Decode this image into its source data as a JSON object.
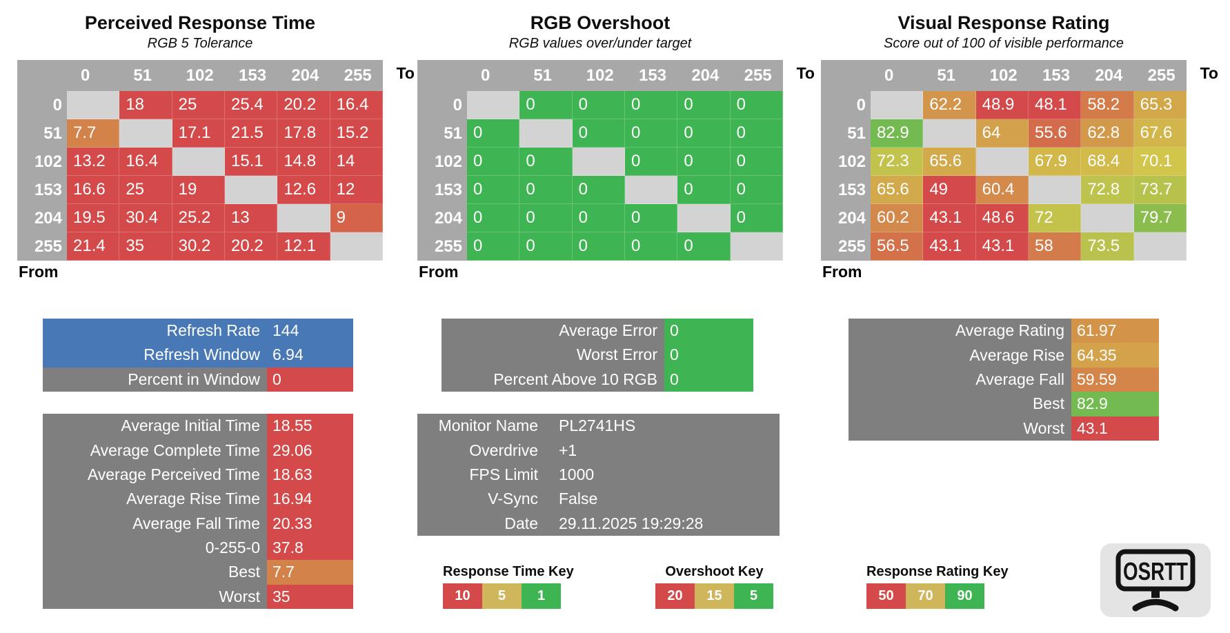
{
  "logo_text": "OSRTT",
  "colors": {
    "red": "#d44a4a",
    "green": "#3eb552",
    "yellow": "#d2c54b",
    "blue": "#4879b6",
    "gray": "#7f7f7f",
    "header_gray": "#a8a8a8",
    "diag_gray": "#d3d3d3",
    "key_yellow": "#cfb65a",
    "logo_bg": "#e4e4e4"
  },
  "scales": {
    "time": {
      "stops": [
        [
          1,
          "#3eb552"
        ],
        [
          5,
          "#d2c54b"
        ],
        [
          10,
          "#d44a4a"
        ]
      ]
    },
    "overshoot": {
      "stops": [
        [
          5,
          "#3eb552"
        ],
        [
          15,
          "#d2c54b"
        ],
        [
          20,
          "#d44a4a"
        ]
      ]
    },
    "rating": {
      "stops": [
        [
          50,
          "#d44a4a"
        ],
        [
          70,
          "#d2c54b"
        ],
        [
          90,
          "#3eb552"
        ]
      ]
    }
  },
  "heatmaps": [
    {
      "title": "Perceived Response Time",
      "subtitle": "RGB 5 Tolerance",
      "to_label": "To",
      "from_label": "From",
      "scale": "time",
      "columns": [
        "0",
        "51",
        "102",
        "153",
        "204",
        "255"
      ],
      "rows": [
        "0",
        "51",
        "102",
        "153",
        "204",
        "255"
      ],
      "cells": [
        [
          null,
          18,
          25,
          25.4,
          20.2,
          16.4
        ],
        [
          7.7,
          null,
          17.1,
          21.5,
          17.8,
          15.2
        ],
        [
          13.2,
          16.4,
          null,
          15.1,
          14.8,
          14
        ],
        [
          16.6,
          25,
          19,
          null,
          12.6,
          12
        ],
        [
          19.5,
          30.4,
          25.2,
          13,
          null,
          9
        ],
        [
          21.4,
          35,
          30.2,
          20.2,
          12.1,
          null
        ]
      ]
    },
    {
      "title": "RGB Overshoot",
      "subtitle": "RGB values over/under target",
      "to_label": "To",
      "from_label": "From",
      "scale": "overshoot",
      "columns": [
        "0",
        "51",
        "102",
        "153",
        "204",
        "255"
      ],
      "rows": [
        "0",
        "51",
        "102",
        "153",
        "204",
        "255"
      ],
      "cells": [
        [
          null,
          0,
          0,
          0,
          0,
          0
        ],
        [
          0,
          null,
          0,
          0,
          0,
          0
        ],
        [
          0,
          0,
          null,
          0,
          0,
          0
        ],
        [
          0,
          0,
          0,
          null,
          0,
          0
        ],
        [
          0,
          0,
          0,
          0,
          null,
          0
        ],
        [
          0,
          0,
          0,
          0,
          0,
          null
        ]
      ]
    },
    {
      "title": "Visual Response Rating",
      "subtitle": "Score out of 100 of visible performance",
      "to_label": "To",
      "from_label": "From",
      "scale": "rating",
      "columns": [
        "0",
        "51",
        "102",
        "153",
        "204",
        "255"
      ],
      "rows": [
        "0",
        "51",
        "102",
        "153",
        "204",
        "255"
      ],
      "cells": [
        [
          null,
          62.2,
          48.9,
          48.1,
          58.2,
          65.3
        ],
        [
          82.9,
          null,
          64,
          55.6,
          62.8,
          67.6
        ],
        [
          72.3,
          65.6,
          null,
          67.9,
          68.4,
          70.1
        ],
        [
          65.6,
          49,
          60.4,
          null,
          72.8,
          73.7
        ],
        [
          60.2,
          43.1,
          48.6,
          72,
          null,
          79.7
        ],
        [
          56.5,
          43.1,
          43.1,
          58,
          73.5,
          null
        ]
      ]
    }
  ],
  "summary_blocks": [
    {
      "id": "refresh",
      "rows": [
        {
          "label": "Refresh Rate",
          "value": "144",
          "label_bg": "blue",
          "value_bg": "blue"
        },
        {
          "label": "Refresh Window",
          "value": "6.94",
          "label_bg": "blue",
          "value_bg": "blue"
        },
        {
          "label": "Percent in Window",
          "value": "0",
          "label_bg": "gray",
          "value_bg": "red"
        }
      ]
    },
    {
      "id": "times",
      "rows": [
        {
          "label": "Average Initial Time",
          "value": "18.55",
          "label_bg": "gray",
          "value_bg": "red"
        },
        {
          "label": "Average Complete Time",
          "value": "29.06",
          "label_bg": "gray",
          "value_bg": "red"
        },
        {
          "label": "Average Perceived Time",
          "value": "18.63",
          "label_bg": "gray",
          "value_bg": "red"
        },
        {
          "label": "Average Rise Time",
          "value": "16.94",
          "label_bg": "gray",
          "value_bg": "red"
        },
        {
          "label": "Average Fall Time",
          "value": "20.33",
          "label_bg": "gray",
          "value_bg": "red"
        },
        {
          "label": "0-255-0",
          "value": "37.8",
          "label_bg": "gray",
          "value_bg": "red"
        },
        {
          "label": "Best",
          "value": "7.7",
          "label_bg": "gray",
          "value_bg": "#d38349"
        },
        {
          "label": "Worst",
          "value": "35",
          "label_bg": "gray",
          "value_bg": "red"
        }
      ]
    },
    {
      "id": "error",
      "rows": [
        {
          "label": "Average Error",
          "value": "0",
          "label_bg": "gray",
          "value_bg": "green"
        },
        {
          "label": "Worst Error",
          "value": "0",
          "label_bg": "gray",
          "value_bg": "green"
        },
        {
          "label": "Percent Above 10 RGB",
          "value": "0",
          "label_bg": "gray",
          "value_bg": "green"
        }
      ]
    },
    {
      "id": "monitor",
      "rows": [
        {
          "label": "Monitor Name",
          "value": "PL2741HS",
          "label_bg": "gray",
          "value_bg": "gray"
        },
        {
          "label": "Overdrive",
          "value": "+1",
          "label_bg": "gray",
          "value_bg": "gray"
        },
        {
          "label": "FPS Limit",
          "value": "1000",
          "label_bg": "gray",
          "value_bg": "gray"
        },
        {
          "label": "V-Sync",
          "value": "False",
          "label_bg": "gray",
          "value_bg": "gray"
        },
        {
          "label": "Date",
          "value": "29.11.2025 19:29:28",
          "label_bg": "gray",
          "value_bg": "gray"
        }
      ]
    },
    {
      "id": "rating",
      "rows": [
        {
          "label": "Average Rating",
          "value": "61.97",
          "label_bg": "gray",
          "value_bg": "#d39449"
        },
        {
          "label": "Average Rise",
          "value": "64.35",
          "label_bg": "gray",
          "value_bg": "#d3a24a"
        },
        {
          "label": "Average Fall",
          "value": "59.59",
          "label_bg": "gray",
          "value_bg": "#d48549"
        },
        {
          "label": "Best",
          "value": "82.9",
          "label_bg": "gray",
          "value_bg": "#73bb50"
        },
        {
          "label": "Worst",
          "value": "43.1",
          "label_bg": "gray",
          "value_bg": "red"
        }
      ]
    }
  ],
  "keys": [
    {
      "title": "Response Time Key",
      "cells": [
        {
          "label": "10",
          "bg": "red"
        },
        {
          "label": "5",
          "bg": "key_yellow"
        },
        {
          "label": "1",
          "bg": "green"
        }
      ]
    },
    {
      "title": "Overshoot Key",
      "cells": [
        {
          "label": "20",
          "bg": "red"
        },
        {
          "label": "15",
          "bg": "key_yellow"
        },
        {
          "label": "5",
          "bg": "green"
        }
      ]
    },
    {
      "title": "Response Rating Key",
      "cells": [
        {
          "label": "50",
          "bg": "red"
        },
        {
          "label": "70",
          "bg": "key_yellow"
        },
        {
          "label": "90",
          "bg": "green"
        }
      ]
    }
  ]
}
